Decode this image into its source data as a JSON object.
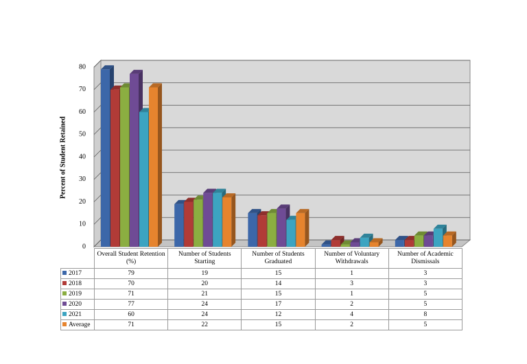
{
  "chart_data": {
    "type": "bar3d",
    "ylabel": "Percent of Student Retained",
    "categories": [
      "Overall Student Retention (%)",
      "Number of Students Starting",
      "Number of Students Graduated",
      "Number of Voluntary Withdrawals",
      "Number of Academic Dismissals"
    ],
    "series": [
      {
        "name": "2017",
        "color": "#3c67a9",
        "values": [
          79,
          19,
          15,
          1,
          3
        ]
      },
      {
        "name": "2018",
        "color": "#b13b37",
        "values": [
          70,
          20,
          14,
          3,
          3
        ]
      },
      {
        "name": "2019",
        "color": "#8bae41",
        "values": [
          71,
          21,
          15,
          1,
          5
        ]
      },
      {
        "name": "2020",
        "color": "#6f4b95",
        "values": [
          77,
          24,
          17,
          2,
          5
        ]
      },
      {
        "name": "2021",
        "color": "#3ca4c1",
        "values": [
          60,
          24,
          12,
          4,
          8
        ]
      },
      {
        "name": "Average",
        "color": "#e6842e",
        "values": [
          71,
          22,
          15,
          2,
          5
        ]
      }
    ],
    "ylim": [
      0,
      80
    ],
    "yticks": [
      0,
      10,
      20,
      30,
      40,
      50,
      60,
      70,
      80
    ],
    "grid": true,
    "legend": "table"
  }
}
